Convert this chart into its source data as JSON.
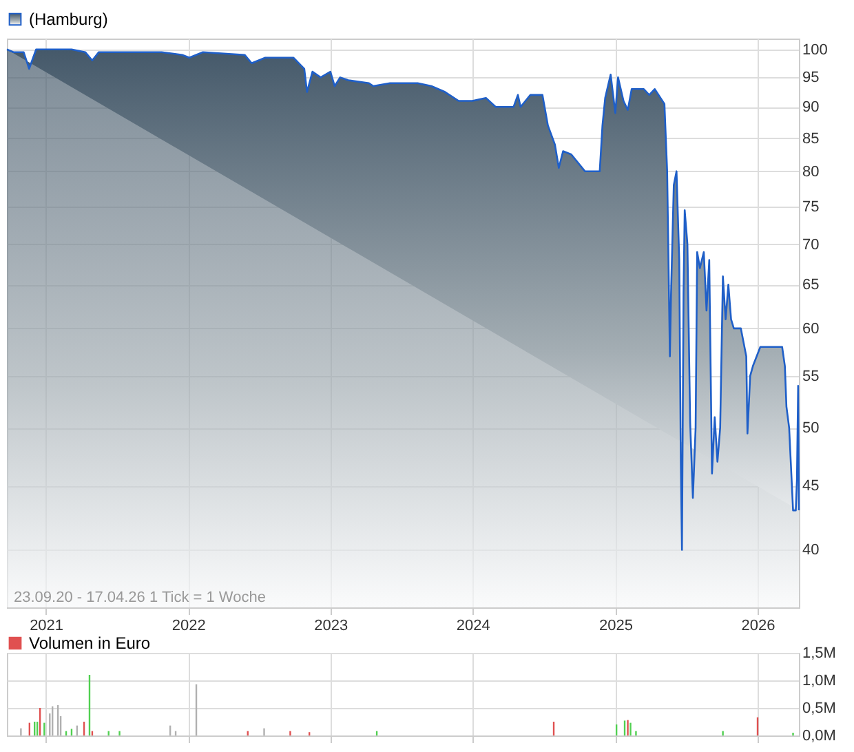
{
  "chart_data": [
    {
      "type": "area",
      "legend": "top left",
      "grid": true,
      "log": "y",
      "line_style": "solid",
      "marker": "none",
      "xlim": [
        "2020-09-23",
        "2026-04-17"
      ],
      "xticks": [
        "2021",
        "2022",
        "2023",
        "2024",
        "2025",
        "2026"
      ],
      "ylim": [
        36,
        102
      ],
      "yticks": [
        40,
        45,
        50,
        55,
        60,
        65,
        70,
        75,
        80,
        85,
        90,
        95,
        100
      ],
      "annotations": [
        "23.09.20 - 17.04.26   1 Tick = 1 Woche"
      ],
      "series": [
        {
          "name": "(Hamburg)",
          "color": "#1f5fc8",
          "x": [
            "2020-09-23",
            "2020-10-10",
            "2020-11-05",
            "2020-11-19",
            "2020-12-07",
            "2021-03-08",
            "2021-04-12",
            "2021-04-30",
            "2021-05-17",
            "2021-08-14",
            "2021-10-25",
            "2021-12-17",
            "2022-01-04",
            "2022-02-08",
            "2022-05-26",
            "2022-06-13",
            "2022-07-18",
            "2022-09-28",
            "2022-10-26",
            "2022-11-02",
            "2022-11-16",
            "2022-12-07",
            "2023-01-01",
            "2023-01-12",
            "2023-01-26",
            "2023-02-16",
            "2023-04-10",
            "2023-04-21",
            "2023-06-03",
            "2023-08-13",
            "2023-09-17",
            "2023-10-22",
            "2023-11-26",
            "2023-12-31",
            "2024-02-04",
            "2024-02-29",
            "2024-04-15",
            "2024-04-26",
            "2024-05-03",
            "2024-05-28",
            "2024-06-28",
            "2024-07-12",
            "2024-07-30",
            "2024-08-09",
            "2024-08-20",
            "2024-09-10",
            "2024-10-15",
            "2024-11-22",
            "2024-11-29",
            "2024-12-06",
            "2024-12-20",
            "2025-01-01",
            "2025-01-08",
            "2025-01-22",
            "2025-02-02",
            "2025-02-12",
            "2025-03-15",
            "2025-03-29",
            "2025-04-12",
            "2025-05-07",
            "2025-05-14",
            "2025-05-21",
            "2025-05-24",
            "2025-05-31",
            "2025-06-07",
            "2025-06-14",
            "2025-06-18",
            "2025-06-21",
            "2025-06-25",
            "2025-06-28",
            "2025-07-05",
            "2025-07-12",
            "2025-07-19",
            "2025-07-26",
            "2025-07-30",
            "2025-08-06",
            "2025-08-16",
            "2025-08-23",
            "2025-08-30",
            "2025-09-06",
            "2025-09-13",
            "2025-09-20",
            "2025-09-27",
            "2025-10-04",
            "2025-10-11",
            "2025-10-18",
            "2025-10-25",
            "2025-11-01",
            "2025-11-19",
            "2025-12-03",
            "2025-12-06",
            "2025-12-13",
            "2025-12-20",
            "2026-01-08",
            "2026-03-05",
            "2026-03-12",
            "2026-03-16",
            "2026-03-23",
            "2026-03-30",
            "2026-04-02",
            "2026-04-09",
            "2026-04-12",
            "2026-04-15",
            "2026-04-17"
          ],
          "values": [
            100,
            99.5,
            99.5,
            96.5,
            100,
            100,
            99.5,
            98,
            99.5,
            99.5,
            99.5,
            99,
            98.5,
            99.5,
            99,
            97.5,
            98.5,
            98.5,
            96.5,
            92.5,
            96,
            95,
            96,
            93.5,
            95,
            94.5,
            94,
            93.5,
            94,
            94,
            93.5,
            92.5,
            91,
            91,
            91.5,
            90,
            90,
            92,
            90,
            92,
            92,
            87,
            84,
            80.5,
            83,
            82.5,
            80,
            80,
            87,
            91.5,
            95.5,
            89,
            95,
            91,
            89.5,
            93,
            93,
            92,
            93,
            90.5,
            80,
            57,
            64,
            78,
            80,
            68,
            47,
            40,
            64,
            74.5,
            70,
            50.5,
            44,
            50,
            69,
            67,
            69,
            62,
            68,
            46,
            51,
            47,
            50,
            66,
            61,
            65,
            61,
            60,
            60,
            57,
            49.5,
            55,
            56,
            58,
            58,
            56,
            52,
            50,
            45,
            43,
            43,
            45.5,
            54,
            43
          ]
        }
      ]
    },
    {
      "type": "bar",
      "legend": "top left",
      "grid": true,
      "tick_labels": "y",
      "xlim": [
        "2020-09-23",
        "2026-04-17"
      ],
      "xticks": [
        "2021",
        "2022",
        "2023",
        "2024",
        "2025",
        "2026"
      ],
      "ylim": [
        0,
        1500000
      ],
      "yticks": [
        {
          "value": 0,
          "label": "0,0M"
        },
        {
          "value": 500000,
          "label": "0,5M"
        },
        {
          "value": 1000000,
          "label": "1,0M"
        },
        {
          "value": 1500000,
          "label": "1,5M"
        }
      ],
      "series": [
        {
          "name": "Volumen in Euro",
          "color": "#e05050",
          "x": [
            "2020-10-29",
            "2020-11-20",
            "2020-12-03",
            "2020-12-10",
            "2020-12-17",
            "2020-12-28",
            "2021-01-11",
            "2021-01-18",
            "2021-02-01",
            "2021-02-08",
            "2021-02-22",
            "2021-03-08",
            "2021-03-22",
            "2021-04-09",
            "2021-04-23",
            "2021-04-30",
            "2021-06-11",
            "2021-07-09",
            "2021-11-16",
            "2021-11-30",
            "2022-01-22",
            "2022-06-03",
            "2022-07-15",
            "2022-09-20",
            "2022-11-08",
            "2023-04-30",
            "2024-07-27",
            "2025-01-04",
            "2025-01-25",
            "2025-02-02",
            "2025-02-09",
            "2025-02-23",
            "2025-10-04",
            "2026-01-01",
            "2026-04-02"
          ],
          "values": [
            130000,
            230000,
            250000,
            250000,
            500000,
            230000,
            400000,
            530000,
            550000,
            350000,
            80000,
            120000,
            180000,
            250000,
            1100000,
            80000,
            80000,
            80000,
            180000,
            80000,
            930000,
            80000,
            130000,
            80000,
            60000,
            80000,
            250000,
            200000,
            270000,
            280000,
            230000,
            80000,
            80000,
            330000,
            50000
          ],
          "colors": [
            "#b0b0b0",
            "#e05050",
            "#50d050",
            "#50d050",
            "#e05050",
            "#50d050",
            "#b0b0b0",
            "#b0b0b0",
            "#b0b0b0",
            "#b0b0b0",
            "#50d050",
            "#50d050",
            "#b0b0b0",
            "#e05050",
            "#50d050",
            "#e05050",
            "#50d050",
            "#50d050",
            "#b0b0b0",
            "#b0b0b0",
            "#b0b0b0",
            "#e05050",
            "#b0b0b0",
            "#e05050",
            "#e05050",
            "#50d050",
            "#e05050",
            "#50d050",
            "#50d050",
            "#e05050",
            "#50d050",
            "#50d050",
            "#50d050",
            "#e05050",
            "#50d050"
          ]
        }
      ]
    }
  ]
}
